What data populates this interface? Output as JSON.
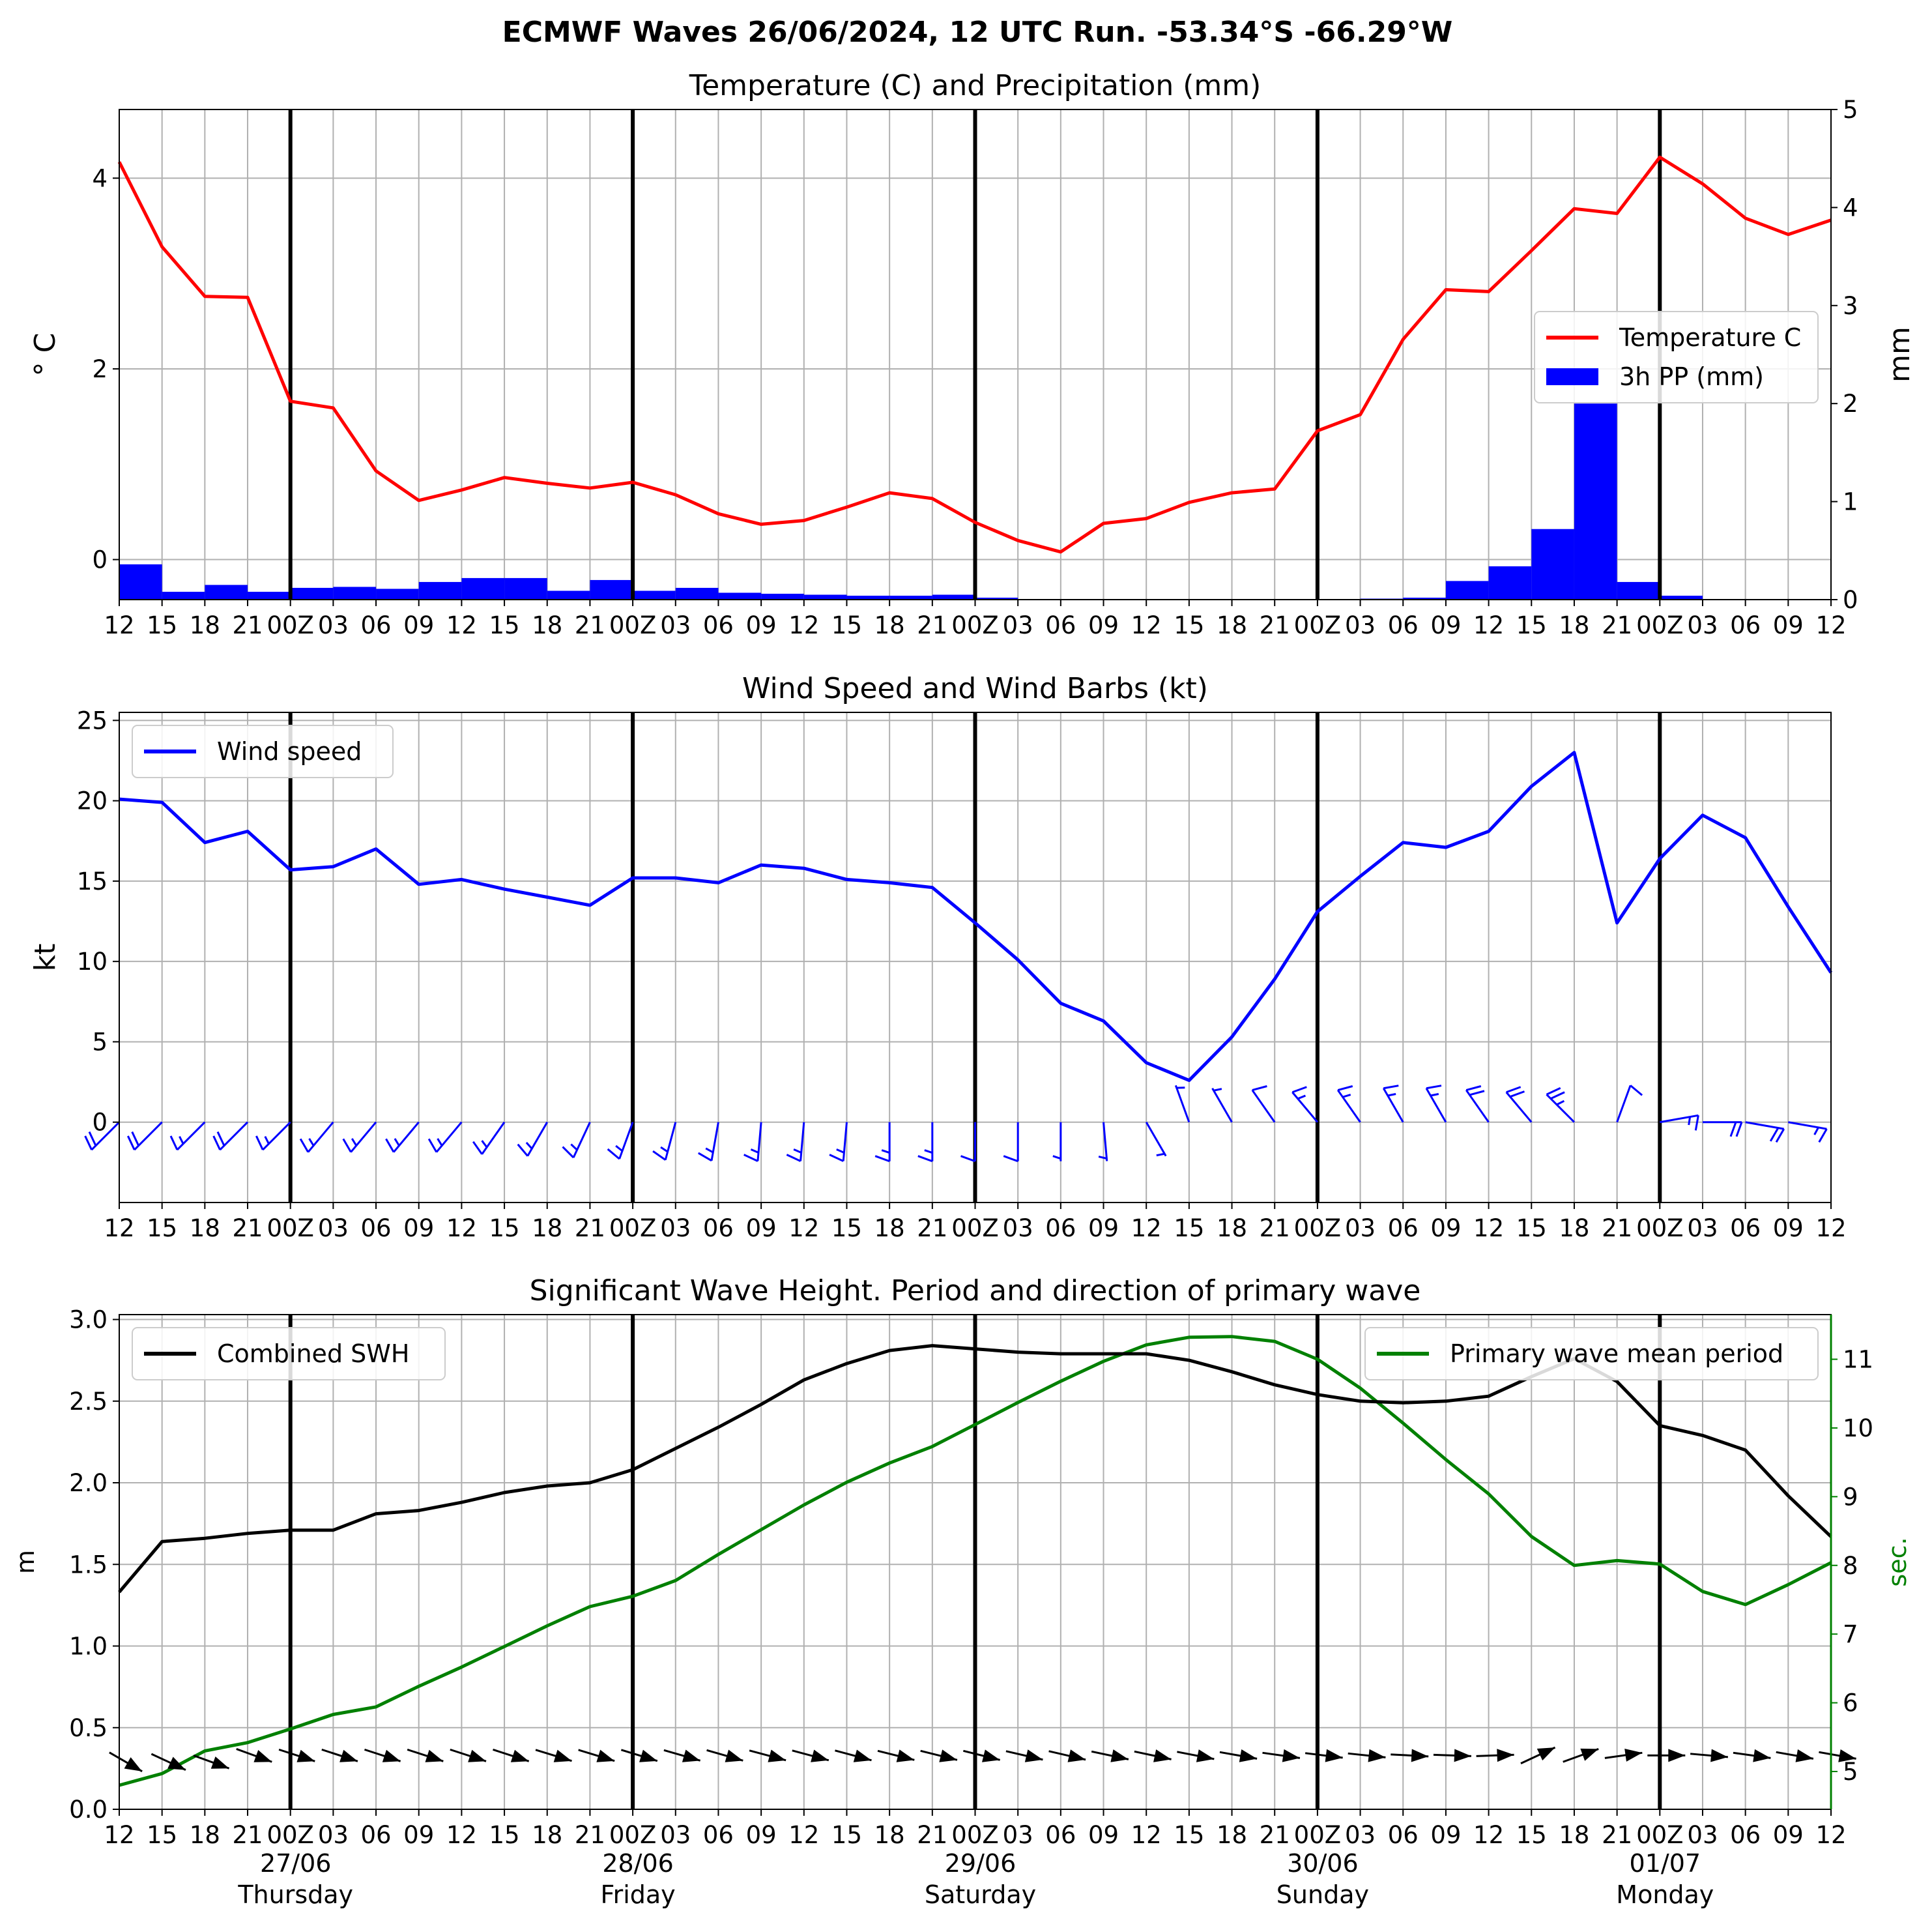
{
  "suptitle": "ECMWF Waves 26/06/2024, 12 UTC Run. -53.34°S -66.29°W",
  "colors": {
    "temperature": "#ff0000",
    "precip": "#0000ff",
    "wind": "#0000ff",
    "swh": "#000000",
    "period": "#008000",
    "grid": "#b0b0b0"
  },
  "time_axis": {
    "tick_labels": [
      "12",
      "15",
      "18",
      "21",
      "00Z",
      "03",
      "06",
      "09",
      "12",
      "15",
      "18",
      "21",
      "00Z",
      "03",
      "06",
      "09",
      "12",
      "15",
      "18",
      "21",
      "00Z",
      "03",
      "06",
      "09",
      "12",
      "15",
      "18",
      "21",
      "00Z",
      "03",
      "06",
      "09",
      "12",
      "15",
      "18",
      "21",
      "00Z",
      "03",
      "06",
      "09",
      "12"
    ],
    "day_labels": [
      {
        "date": "27/06",
        "weekday": "Thursday"
      },
      {
        "date": "28/06",
        "weekday": "Friday"
      },
      {
        "date": "29/06",
        "weekday": "Saturday"
      },
      {
        "date": "30/06",
        "weekday": "Sunday"
      },
      {
        "date": "01/07",
        "weekday": "Monday"
      }
    ]
  },
  "chart_data": [
    {
      "type": "line",
      "title": "Temperature (C) and Precipitation (mm)",
      "ylabel": "° C",
      "ylabel_right": "mm",
      "ylim": [
        -0.42,
        4.72
      ],
      "ylim_right": [
        0,
        5
      ],
      "yticks": [
        "0",
        "2",
        "4"
      ],
      "yticks_right": [
        "0",
        "1",
        "2",
        "3",
        "4",
        "5"
      ],
      "grid": true,
      "legend_position": "right",
      "series": [
        {
          "name": "Temperature C",
          "kind": "line",
          "values": [
            4.17,
            3.28,
            2.76,
            2.75,
            1.66,
            1.59,
            0.93,
            0.62,
            0.73,
            0.86,
            0.8,
            0.75,
            0.81,
            0.68,
            0.48,
            0.37,
            0.41,
            0.55,
            0.7,
            0.64,
            0.39,
            0.2,
            0.08,
            0.38,
            0.43,
            0.6,
            0.7,
            0.74,
            1.35,
            1.52,
            2.31,
            2.83,
            2.81,
            3.24,
            3.68,
            3.63,
            4.22,
            3.94,
            3.58,
            3.41,
            3.56
          ]
        },
        {
          "name": "3h PP (mm)",
          "kind": "bar",
          "values": [
            0.36,
            0.08,
            0.15,
            0.08,
            0.12,
            0.13,
            0.11,
            0.18,
            0.22,
            0.22,
            0.09,
            0.2,
            0.09,
            0.12,
            0.07,
            0.06,
            0.05,
            0.04,
            0.04,
            0.05,
            0.02,
            0,
            0,
            0,
            0,
            0,
            0,
            0,
            0,
            0.01,
            0.02,
            0.19,
            0.34,
            0.72,
            2.0,
            0.18,
            0.04,
            0,
            0,
            0
          ]
        }
      ]
    },
    {
      "type": "line",
      "title": "Wind Speed and Wind Barbs (kt)",
      "ylabel": "kt",
      "ylim": [
        -5,
        25.5
      ],
      "yticks": [
        "0",
        "5",
        "10",
        "15",
        "20",
        "25"
      ],
      "grid": true,
      "legend_position": "top-left",
      "series": [
        {
          "name": "Wind speed",
          "values": [
            20.1,
            19.9,
            17.4,
            18.1,
            15.7,
            15.9,
            17.0,
            14.8,
            15.1,
            14.5,
            14.0,
            13.5,
            15.2,
            15.2,
            14.9,
            16.0,
            15.8,
            15.1,
            14.9,
            14.6,
            12.4,
            10.1,
            7.4,
            6.3,
            3.7,
            2.6,
            5.3,
            8.9,
            13.1,
            15.3,
            17.4,
            17.1,
            18.1,
            20.9,
            23.0,
            12.4,
            16.4,
            19.1,
            17.7,
            13.4,
            9.3
          ]
        }
      ],
      "barbs_direction_deg": [
        315,
        315,
        315,
        315,
        315,
        320,
        320,
        320,
        320,
        325,
        330,
        335,
        340,
        345,
        350,
        355,
        355,
        355,
        0,
        0,
        0,
        0,
        0,
        5,
        30,
        200,
        210,
        215,
        220,
        215,
        210,
        210,
        215,
        220,
        225,
        160,
        100,
        90,
        80,
        80,
        80
      ]
    },
    {
      "type": "line",
      "title": "Significant Wave Height. Period and direction of primary wave",
      "ylabel": "m",
      "ylabel_right": "sec.",
      "ylim": [
        0,
        3.03
      ],
      "ylim_right": [
        4.45,
        11.65
      ],
      "yticks": [
        "0.0",
        "0.5",
        "1.0",
        "1.5",
        "2.0",
        "2.5",
        "3.0"
      ],
      "yticks_right": [
        "5",
        "6",
        "7",
        "8",
        "9",
        "10",
        "11"
      ],
      "grid": true,
      "legend_position": "top-left and top-right",
      "series": [
        {
          "name": "Combined SWH",
          "values": [
            1.33,
            1.64,
            1.66,
            1.69,
            1.71,
            1.71,
            1.81,
            1.83,
            1.88,
            1.94,
            1.98,
            2.0,
            2.08,
            2.21,
            2.34,
            2.48,
            2.63,
            2.73,
            2.81,
            2.84,
            2.82,
            2.8,
            2.79,
            2.79,
            2.79,
            2.75,
            2.68,
            2.6,
            2.54,
            2.5,
            2.49,
            2.5,
            2.53,
            2.65,
            2.76,
            2.62,
            2.35,
            2.29,
            2.2,
            1.92,
            1.67
          ]
        },
        {
          "name": "Primary wave mean period",
          "axis": "right",
          "values": [
            4.8,
            4.97,
            5.3,
            5.42,
            5.62,
            5.83,
            5.94,
            6.24,
            6.52,
            6.82,
            7.12,
            7.4,
            7.55,
            7.78,
            8.16,
            8.52,
            8.88,
            9.21,
            9.49,
            9.73,
            10.05,
            10.37,
            10.68,
            10.97,
            11.21,
            11.32,
            11.33,
            11.26,
            11.0,
            10.58,
            10.07,
            9.54,
            9.04,
            8.42,
            8.0,
            8.07,
            8.02,
            7.62,
            7.43,
            7.72,
            8.04
          ]
        }
      ],
      "wave_direction_deg": [
        300,
        295,
        290,
        290,
        288,
        288,
        288,
        288,
        288,
        288,
        287,
        287,
        287,
        286,
        286,
        285,
        285,
        285,
        284,
        284,
        284,
        283,
        283,
        282,
        282,
        281,
        280,
        278,
        277,
        276,
        273,
        272,
        268,
        245,
        250,
        262,
        270,
        275,
        278,
        280,
        280
      ]
    }
  ]
}
